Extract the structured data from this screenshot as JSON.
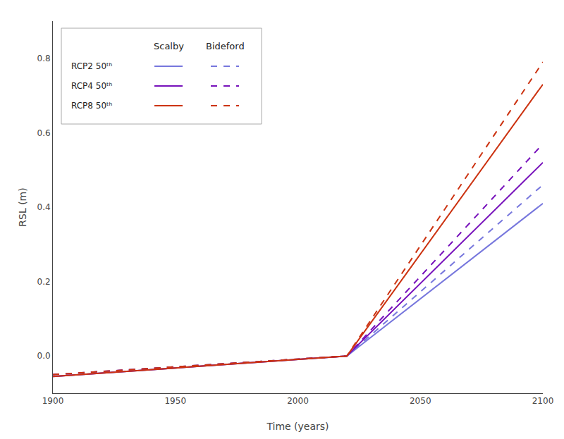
{
  "chart_data": {
    "type": "line",
    "xlabel": "Time (years)",
    "ylabel": "RSL (m)",
    "x": [
      1900,
      2020,
      2100
    ],
    "xlim": [
      1900,
      2100
    ],
    "ylim": [
      -0.1,
      0.9
    ],
    "xticks": [
      1900,
      1950,
      2000,
      2050,
      2100
    ],
    "yticks": [
      {
        "value": 0,
        "label": "0.0"
      },
      0.2,
      0.4,
      0.6,
      0.8
    ],
    "grid": false,
    "legend": "upper left",
    "series": [
      {
        "name": "RCP2 50ᵗʰ",
        "column": "Scalby",
        "color": "#7777dd",
        "line_style": "solid",
        "values": [
          -0.055,
          0.0,
          0.41
        ]
      },
      {
        "name": "RCP2 50ᵗʰ",
        "column": "Bideford",
        "color": "#7777dd",
        "line_style": "dashed",
        "values": [
          -0.05,
          0.0,
          0.46
        ]
      },
      {
        "name": "RCP4 50ᵗʰ",
        "column": "Scalby",
        "color": "#7711bb",
        "line_style": "solid",
        "values": [
          -0.055,
          0.0,
          0.52
        ]
      },
      {
        "name": "RCP4 50ᵗʰ",
        "column": "Bideford",
        "color": "#7711bb",
        "line_style": "dashed",
        "values": [
          -0.05,
          0.0,
          0.57
        ]
      },
      {
        "name": "RCP8 50ᵗʰ",
        "column": "Scalby",
        "color": "#cc3311",
        "line_style": "solid",
        "values": [
          -0.055,
          0.0,
          0.73
        ]
      },
      {
        "name": "RCP8 50ᵗʰ",
        "column": "Bideford",
        "color": "#cc3311",
        "line_style": "dashed",
        "values": [
          -0.05,
          0.0,
          0.79
        ]
      }
    ]
  }
}
